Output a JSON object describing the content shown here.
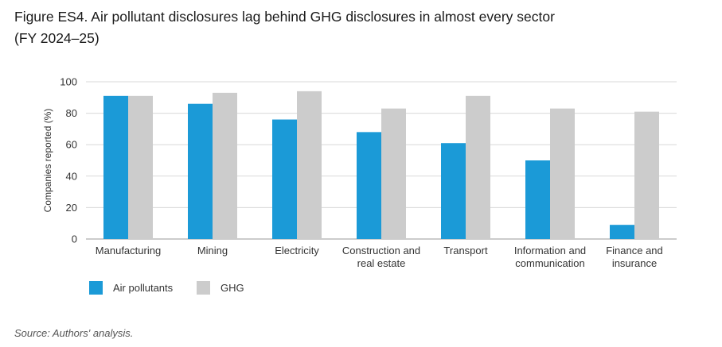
{
  "header": {
    "title_line1": "Figure ES4. Air pollutant disclosures lag behind GHG disclosures in almost every sector",
    "title_line2": "(FY 2024–25)"
  },
  "footer": {
    "source": "Source: Authors' analysis."
  },
  "colors": {
    "air_pollutants": "#1b9ad7",
    "ghg": "#cccccc",
    "grid": "#d9d9d9",
    "axis": "#999999"
  },
  "chart_data": {
    "type": "bar",
    "title": "",
    "xlabel": "",
    "ylabel": "Companies reported (%)",
    "ylim": [
      0,
      100
    ],
    "yticks": [
      0,
      20,
      40,
      60,
      80,
      100
    ],
    "grid": true,
    "legend_position": "bottom-left",
    "categories": [
      [
        "Manufacturing"
      ],
      [
        "Mining"
      ],
      [
        "Electricity"
      ],
      [
        "Construction and",
        "real estate"
      ],
      [
        "Transport"
      ],
      [
        "Information and",
        "communication"
      ],
      [
        "Finance and",
        "insurance"
      ]
    ],
    "series": [
      {
        "name": "Air pollutants",
        "color": "#1b9ad7",
        "values": [
          91,
          86,
          76,
          68,
          61,
          50,
          9
        ]
      },
      {
        "name": "GHG",
        "color": "#cccccc",
        "values": [
          91,
          93,
          94,
          83,
          91,
          83,
          81
        ]
      }
    ]
  }
}
